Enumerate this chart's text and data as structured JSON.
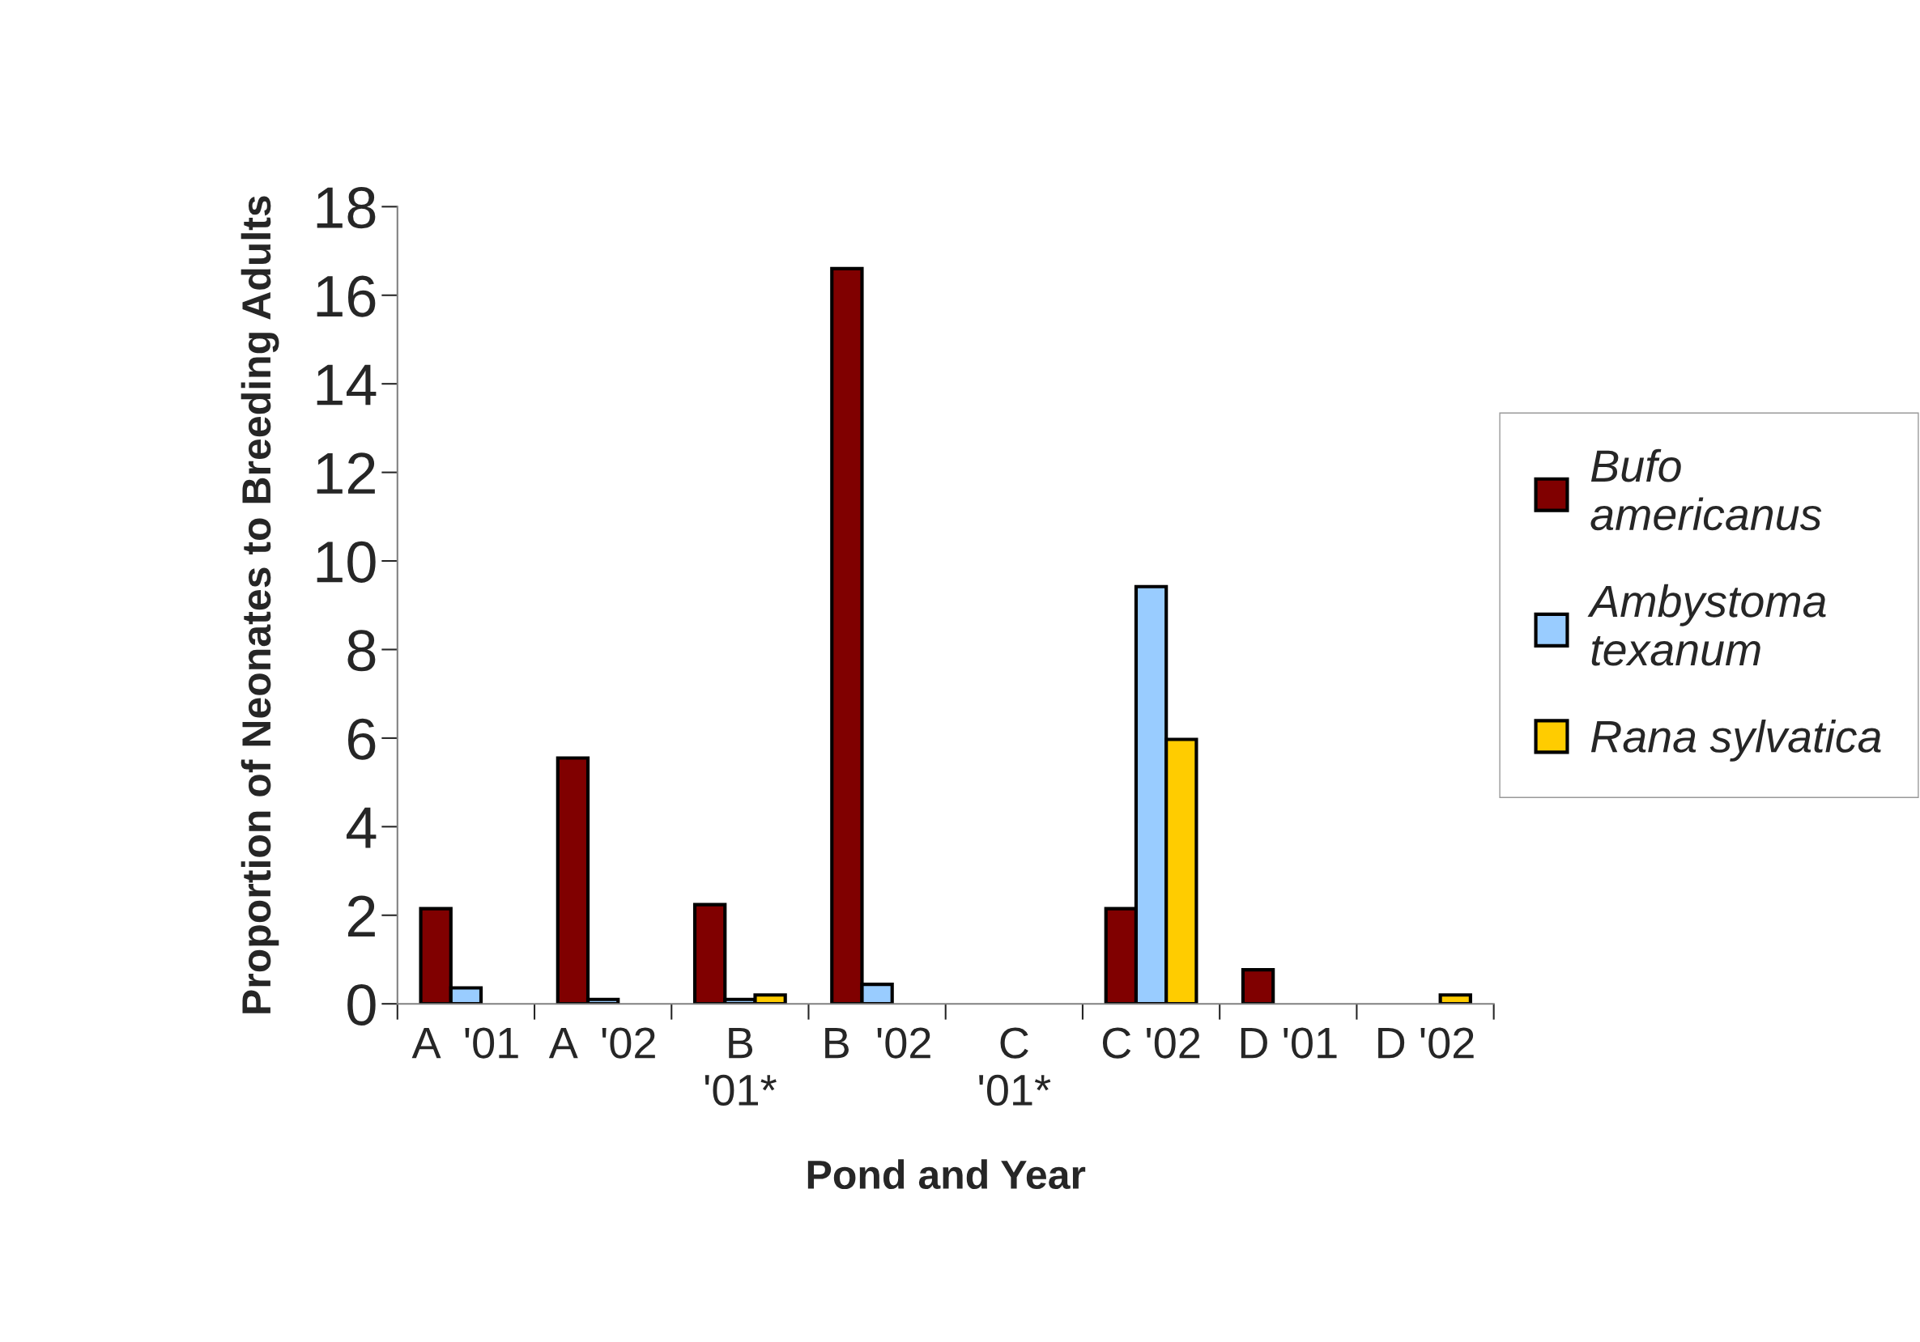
{
  "chart_data": {
    "type": "bar",
    "xlabel": "Pond and Year",
    "ylabel": "Proportion of Neonates to Breeding Adults",
    "categories": [
      "A  '01",
      "A  '02",
      "B\n'01*",
      "B  '02",
      "C\n'01*",
      "C '02",
      "D '01",
      "D '02"
    ],
    "series": [
      {
        "name": "Bufo\namericanus",
        "color": "#800000",
        "values": [
          2.15,
          5.55,
          2.24,
          16.6,
          null,
          2.15,
          0.77,
          null
        ]
      },
      {
        "name": "Ambystoma\ntexanum",
        "color": "#99ccff",
        "values": [
          0.36,
          0.1,
          0.1,
          0.44,
          null,
          9.42,
          null,
          null
        ]
      },
      {
        "name": "Rana sylvatica",
        "color": "#ffcc00",
        "values": [
          null,
          null,
          0.2,
          null,
          null,
          5.97,
          null,
          0.2
        ]
      }
    ],
    "ylim": [
      0,
      18
    ],
    "yticks": [
      0,
      2,
      4,
      6,
      8,
      10,
      12,
      14,
      16,
      18
    ],
    "grid": false,
    "legend": "right"
  }
}
